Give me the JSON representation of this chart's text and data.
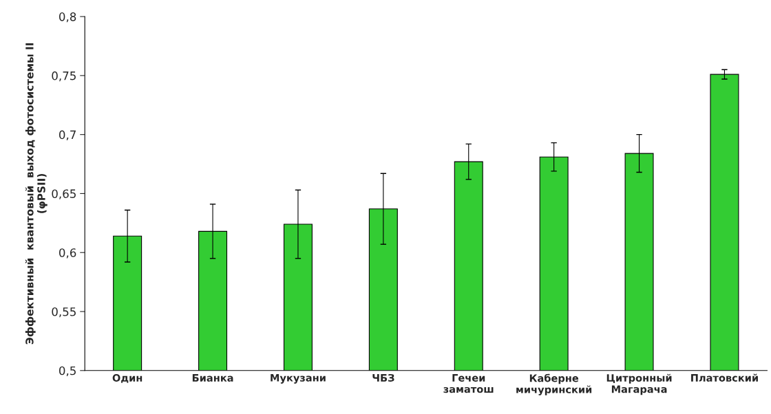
{
  "chart_data": {
    "type": "bar",
    "ylabel": "Эффективный  квантовый  выход фотосистемы II\n(φPSII)",
    "categories": [
      "Один",
      "Бианка",
      "Мукузани",
      "ЧБЗ",
      "Гечеи\nзаматош",
      "Каберне\nмичуринский",
      "Цитронный\nМагарача",
      "Платовский"
    ],
    "values": [
      0.614,
      0.618,
      0.624,
      0.637,
      0.677,
      0.681,
      0.684,
      0.751
    ],
    "errors": [
      0.022,
      0.023,
      0.029,
      0.03,
      0.015,
      0.012,
      0.016,
      0.004
    ],
    "color": "#33cc33",
    "ylim": [
      0.5,
      0.8
    ],
    "yticks": [
      {
        "value": 0.5,
        "label": "0,5"
      },
      {
        "value": 0.55,
        "label": "0,55"
      },
      {
        "value": 0.6,
        "label": "0,6"
      },
      {
        "value": 0.65,
        "label": "0,65"
      },
      {
        "value": 0.7,
        "label": "0,7"
      },
      {
        "value": 0.75,
        "label": "0,75"
      },
      {
        "value": 0.8,
        "label": "0,8"
      }
    ],
    "grid": false
  }
}
